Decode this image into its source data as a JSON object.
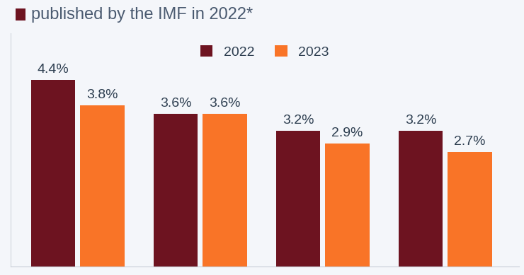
{
  "chart_data": {
    "type": "bar",
    "title": "published by the IMF in 2022*",
    "categories": [
      null,
      null,
      null,
      null
    ],
    "series": [
      {
        "name": "2022",
        "color": "#6d1320",
        "values": [
          4.4,
          3.6,
          3.2,
          3.2
        ],
        "value_labels": [
          "4.4%",
          "3.6%",
          "3.2%",
          "3.2%"
        ]
      },
      {
        "name": "2023",
        "color": "#f97427",
        "values": [
          3.8,
          3.6,
          2.9,
          2.7
        ],
        "value_labels": [
          "3.8%",
          "3.6%",
          "2.9%",
          "2.7%"
        ]
      }
    ],
    "ylim": [
      0,
      5.5
    ],
    "yticks": [],
    "grid": false,
    "legend": "upper center",
    "data_labels": true,
    "tick_labels": false
  }
}
